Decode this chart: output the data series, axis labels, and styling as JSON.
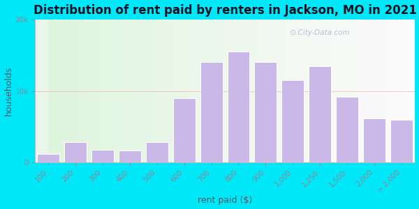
{
  "title": "Distribution of rent paid by renters in Jackson, MO in 2021",
  "xlabel": "rent paid ($)",
  "ylabel": "households",
  "categories": [
    "100",
    "200",
    "300",
    "400",
    "500",
    "600",
    "700",
    "800",
    "900",
    "1,000",
    "1,250",
    "1,500",
    "2,000",
    "> 2,000"
  ],
  "values": [
    1200,
    2800,
    1800,
    1700,
    2800,
    9000,
    14000,
    15500,
    14000,
    11500,
    13500,
    9200,
    6200,
    6000
  ],
  "bar_color": "#c9b8e8",
  "bar_edge_color": "#ffffff",
  "ylim": [
    0,
    20000
  ],
  "ytick_labels": [
    "0",
    "10k",
    "20k"
  ],
  "bg_outer": "#00e8f8",
  "title_fontsize": 12,
  "axis_label_fontsize": 9,
  "tick_fontsize": 7.5,
  "watermark": "  City-Data.com"
}
